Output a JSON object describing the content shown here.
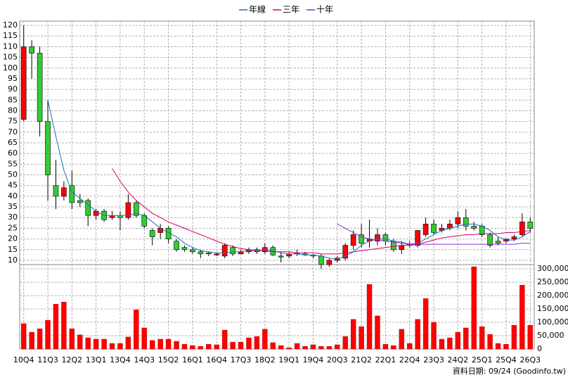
{
  "chart_data": {
    "type": "candlestick",
    "legend": "top",
    "grid": true,
    "up_color": "#ff0000",
    "down_color": "#33cc33",
    "source_note": "資料日期: 09/24  (Goodinfo.tw)",
    "categories": [
      "10Q4",
      null,
      null,
      "11Q3",
      null,
      null,
      "12Q2",
      null,
      null,
      "13Q1",
      null,
      null,
      "13Q4",
      null,
      null,
      "14Q3",
      null,
      null,
      "15Q2",
      null,
      null,
      "16Q1",
      null,
      null,
      "16Q4",
      null,
      null,
      "17Q3",
      null,
      null,
      "18Q2",
      null,
      null,
      "19Q1",
      null,
      null,
      "19Q4",
      null,
      null,
      "20Q3",
      null,
      null,
      "21Q2",
      null,
      null,
      "22Q1",
      null,
      null,
      "22Q4",
      null,
      null,
      "23Q3",
      null,
      null,
      "24Q2",
      null,
      null,
      "25Q1",
      null,
      null,
      "25Q4",
      null,
      null,
      "26Q3"
    ],
    "open": [
      76,
      110,
      107,
      75,
      45,
      40,
      45,
      38,
      38,
      31,
      33,
      30,
      31,
      30,
      37,
      31,
      24,
      23,
      25,
      19,
      16,
      15,
      14,
      13.5,
      12.5,
      12,
      16,
      13,
      14,
      15,
      14,
      16,
      12,
      12,
      13,
      13,
      12.5,
      12,
      8,
      10,
      11,
      17,
      22,
      19,
      19,
      22,
      19,
      15,
      17,
      17,
      22,
      27,
      24,
      25,
      27,
      30,
      26,
      26,
      22,
      19,
      19,
      20,
      22,
      28
    ],
    "high": [
      120,
      113,
      110,
      85,
      57,
      47,
      52,
      41,
      39,
      34,
      34,
      33,
      33,
      41,
      38,
      32,
      25,
      27,
      26,
      20,
      17,
      16,
      15,
      14,
      13.5,
      18,
      17,
      15,
      16,
      16,
      18,
      17,
      14,
      14,
      15,
      14,
      13,
      13,
      11,
      12,
      18,
      24,
      27,
      29,
      25,
      23,
      20,
      19,
      19,
      24,
      30,
      29,
      27,
      29,
      33,
      34,
      28,
      27,
      23,
      21,
      20,
      22,
      32,
      30
    ],
    "low": [
      75,
      95,
      68,
      38,
      34,
      38,
      34,
      35,
      26,
      29,
      28,
      29,
      24,
      29,
      30,
      25,
      17,
      20,
      18,
      14,
      14,
      13,
      11,
      12,
      12,
      11,
      12,
      13,
      13,
      13,
      13,
      12,
      9,
      11,
      12,
      12,
      11,
      6,
      7,
      9,
      10,
      15,
      16,
      16,
      17,
      17,
      14,
      13,
      16,
      16,
      21,
      22,
      23,
      24,
      25,
      24,
      24,
      21,
      16,
      17,
      18,
      19,
      21,
      23
    ],
    "close": [
      110,
      107,
      75,
      50,
      40,
      44,
      37,
      37,
      31,
      33,
      29,
      31,
      30,
      37,
      31,
      26,
      21,
      25,
      20,
      15,
      15,
      14,
      13,
      13,
      13,
      17,
      13,
      14,
      15,
      14,
      16,
      12.5,
      11.5,
      13,
      13.5,
      12.5,
      12,
      8,
      10,
      11,
      17,
      22,
      18,
      20,
      22,
      19,
      15,
      17,
      17.5,
      24,
      27,
      23,
      25,
      27,
      30,
      26,
      25,
      22,
      17,
      18,
      20,
      21,
      28,
      25
    ],
    "series": [
      {
        "name": "年線",
        "color": "#1f6fc0",
        "values": [
          null,
          null,
          null,
          85,
          68,
          52,
          42,
          39,
          36,
          33,
          31,
          31,
          31,
          31,
          32,
          31,
          28,
          25,
          23,
          21,
          18,
          16,
          14.5,
          14,
          13.5,
          13.5,
          14,
          14,
          14.5,
          14.5,
          15,
          14.5,
          13.5,
          13,
          13,
          12.5,
          12.5,
          12,
          11,
          10.5,
          12,
          14,
          17,
          19,
          20,
          20,
          19,
          18.5,
          17.5,
          18,
          20,
          22,
          24,
          25,
          26,
          27,
          27,
          26,
          24,
          21,
          19.5,
          19.5,
          21,
          23.5
        ]
      },
      {
        "name": "三年",
        "color": "#d6006b",
        "values": [
          null,
          null,
          null,
          null,
          null,
          null,
          null,
          null,
          null,
          null,
          null,
          53,
          47,
          42,
          38,
          35,
          32,
          30,
          28,
          26.5,
          25,
          23.5,
          22,
          20.5,
          19,
          17.5,
          16.5,
          15.5,
          15,
          14.5,
          14.5,
          14,
          14,
          14,
          13.5,
          13.5,
          13.5,
          13,
          13,
          13,
          13.5,
          14,
          14.5,
          15,
          15.5,
          16,
          16.5,
          17,
          17,
          17.5,
          18.5,
          19.5,
          20.5,
          21,
          21.5,
          22,
          22,
          22.5,
          22.5,
          22.5,
          23,
          23,
          23.5,
          24
        ]
      },
      {
        "name": "十年",
        "color": "#8a2be2",
        "values": [
          null,
          null,
          null,
          null,
          null,
          null,
          null,
          null,
          null,
          null,
          null,
          null,
          null,
          null,
          null,
          null,
          null,
          null,
          null,
          null,
          null,
          null,
          null,
          null,
          null,
          null,
          null,
          null,
          null,
          null,
          null,
          null,
          null,
          null,
          null,
          null,
          null,
          null,
          null,
          27,
          25,
          23,
          21,
          20,
          19.5,
          19,
          18.5,
          18,
          17.5,
          17.5,
          17.5,
          17.5,
          17.5,
          17.5,
          17.5,
          17.5,
          17.5,
          17.5,
          17.5,
          17.5,
          17.5,
          17.5,
          18,
          18
        ]
      }
    ],
    "volume": {
      "axis": "y2",
      "color": "#ff0000",
      "values": [
        95000,
        63000,
        76000,
        108000,
        168000,
        176000,
        76000,
        53000,
        42000,
        37000,
        37000,
        21000,
        21000,
        45000,
        147000,
        79000,
        32000,
        37000,
        37000,
        29000,
        18000,
        13000,
        10000,
        18000,
        16000,
        71000,
        26000,
        26000,
        42000,
        47000,
        74000,
        24000,
        13000,
        5000,
        21000,
        10000,
        16000,
        10000,
        10000,
        16000,
        47000,
        111000,
        84000,
        242000,
        124000,
        18000,
        13000,
        74000,
        21000,
        111000,
        189000,
        100000,
        37000,
        42000,
        63000,
        79000,
        308000,
        84000,
        55000,
        21000,
        18000,
        89000,
        239000,
        89000
      ]
    },
    "ylim": [
      8,
      122
    ],
    "yticks": [
      10,
      15,
      20,
      25,
      30,
      35,
      40,
      45,
      50,
      55,
      60,
      65,
      70,
      75,
      80,
      85,
      90,
      95,
      100,
      105,
      110,
      115,
      120
    ],
    "y2lim": [
      0,
      316000
    ],
    "y2ticks": [
      0,
      {
        "value": 50000,
        "label": "50,000"
      },
      {
        "value": 100000,
        "label": "100,000"
      },
      {
        "value": 150000,
        "label": "150,000"
      },
      {
        "value": 200000,
        "label": "200,000"
      },
      {
        "value": 250000,
        "label": "250,000"
      },
      {
        "value": 300000,
        "label": "300,000"
      }
    ]
  }
}
